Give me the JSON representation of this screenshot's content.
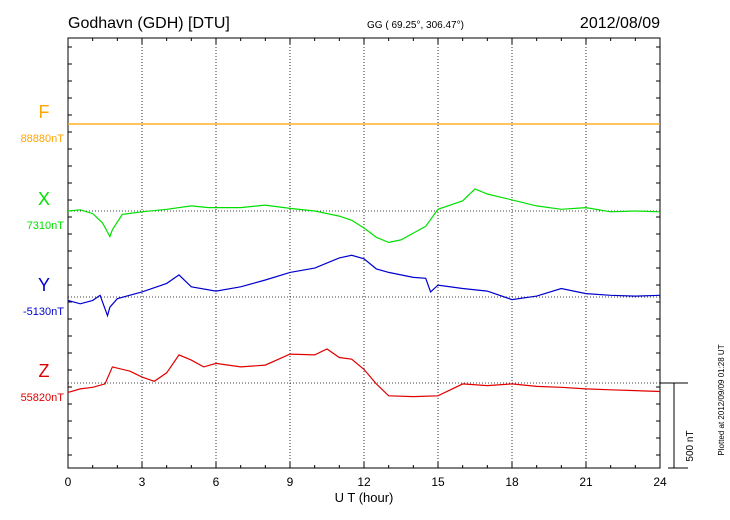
{
  "header": {
    "station": "Godhavn (GDH)  [DTU]",
    "coords": "GG ( 69.25°, 306.47°)",
    "date": "2012/08/09"
  },
  "side_note": "Plotted at 2012/09/09 01:28 UT",
  "scale_label": "500 nT",
  "chart_data": {
    "type": "line",
    "xlabel": "U T (hour)",
    "xlim": [
      0,
      24
    ],
    "xticks": [
      0,
      3,
      6,
      9,
      12,
      15,
      18,
      21,
      24
    ],
    "scale_bar_nT": 500,
    "colors": {
      "F": "#ffa500",
      "X": "#00e000",
      "Y": "#0000cc",
      "Z": "#e00000"
    },
    "series": [
      {
        "name": "F",
        "baseline_label": "88880nT",
        "baseline_nT": 88880,
        "x": [
          0,
          24
        ],
        "y": [
          88880,
          88880
        ]
      },
      {
        "name": "X",
        "baseline_label": "7310nT",
        "baseline_nT": 7310,
        "x": [
          0,
          0.5,
          1.0,
          1.4,
          1.7,
          1.8,
          2.2,
          3.0,
          4.0,
          5.0,
          5.7,
          7.0,
          8.0,
          9.0,
          10.0,
          11.0,
          11.5,
          12.0,
          12.5,
          13.0,
          13.5,
          14.0,
          14.5,
          15.0,
          16.0,
          16.5,
          17.0,
          18.0,
          19.0,
          20.0,
          21.0,
          22.0,
          23.0,
          24.0
        ],
        "y": [
          7310,
          7317,
          7295,
          7240,
          7160,
          7200,
          7290,
          7305,
          7320,
          7340,
          7330,
          7330,
          7345,
          7325,
          7310,
          7280,
          7255,
          7210,
          7155,
          7125,
          7140,
          7180,
          7220,
          7320,
          7370,
          7440,
          7410,
          7375,
          7340,
          7320,
          7330,
          7305,
          7310,
          7305
        ]
      },
      {
        "name": "Y",
        "baseline_label": "-5130nT",
        "baseline_nT": -5130,
        "x": [
          0,
          0.5,
          1.0,
          1.3,
          1.6,
          1.7,
          2.0,
          3.0,
          4.0,
          4.5,
          5.0,
          6.0,
          7.0,
          8.0,
          9.0,
          10.0,
          11.0,
          11.5,
          12.0,
          12.5,
          13.0,
          14.0,
          14.5,
          14.7,
          15.0,
          16.0,
          17.0,
          18.0,
          19.0,
          20.0,
          21.0,
          22.0,
          23.0,
          24.0
        ],
        "y": [
          -5150,
          -5170,
          -5150,
          -5120,
          -5240,
          -5190,
          -5140,
          -5100,
          -5050,
          -5000,
          -5070,
          -5095,
          -5070,
          -5030,
          -4985,
          -4960,
          -4900,
          -4885,
          -4905,
          -4965,
          -4985,
          -5015,
          -5020,
          -5100,
          -5060,
          -5080,
          -5095,
          -5145,
          -5125,
          -5080,
          -5110,
          -5120,
          -5125,
          -5120
        ]
      },
      {
        "name": "Z",
        "baseline_label": "55820nT",
        "baseline_nT": 55820,
        "x": [
          0,
          0.5,
          1.0,
          1.5,
          1.8,
          2.5,
          3.0,
          3.5,
          4.0,
          4.5,
          5.0,
          5.5,
          6.0,
          7.0,
          8.0,
          9.0,
          10.0,
          10.5,
          11.0,
          11.5,
          12.0,
          12.5,
          13.0,
          14.0,
          15.0,
          16.0,
          17.0,
          18.0,
          19.0,
          20.0,
          21.0,
          22.0,
          23.0,
          24.0
        ],
        "y": [
          55765,
          55785,
          55795,
          55815,
          55915,
          55890,
          55855,
          55830,
          55880,
          55985,
          55955,
          55915,
          55935,
          55915,
          55925,
          55990,
          55985,
          56020,
          55970,
          55960,
          55900,
          55815,
          55745,
          55740,
          55745,
          55815,
          55805,
          55815,
          55800,
          55795,
          55785,
          55780,
          55775,
          55770
        ]
      }
    ]
  }
}
